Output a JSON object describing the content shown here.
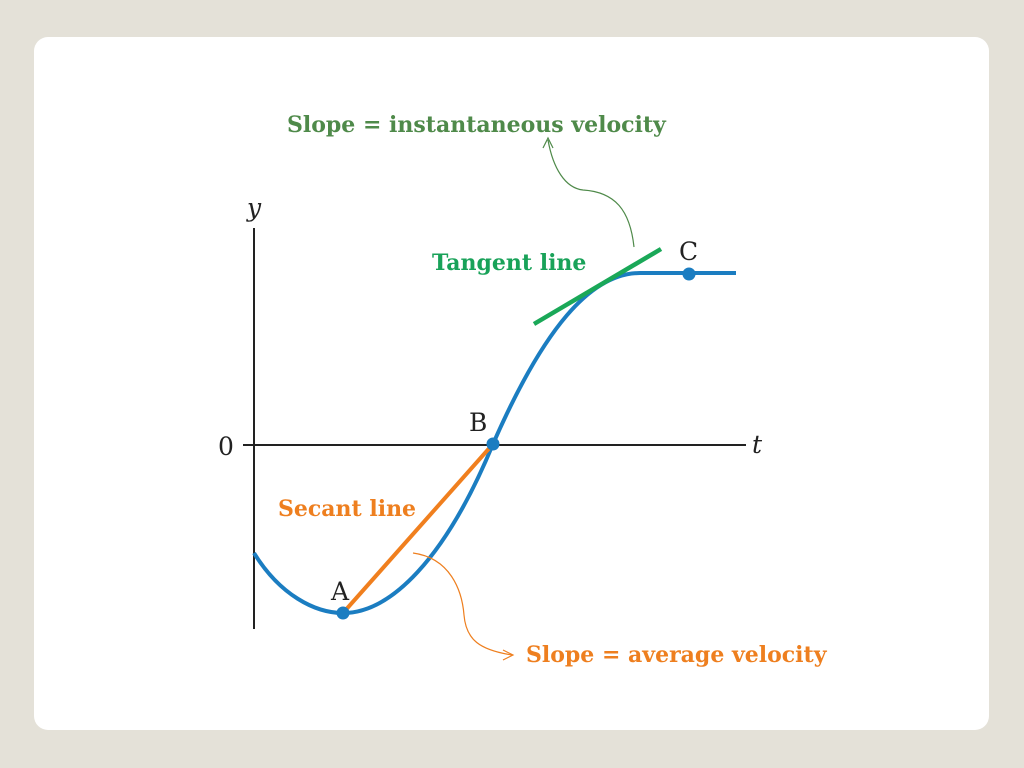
{
  "labels": {
    "instantaneous": "Slope = instantaneous velocity",
    "tangent": "Tangent line",
    "secant": "Secant line",
    "average": "Slope = average velocity"
  },
  "axes": {
    "y_label": "y",
    "x_label": "t",
    "origin_label": "0"
  },
  "points": {
    "a": "A",
    "b": "B",
    "c": "C"
  },
  "colors": {
    "background": "#e4e1d8",
    "slide": "#ffffff",
    "curve": "#1b7dc1",
    "secant": "#f07f1e",
    "tangent": "#1aa858",
    "instantaneous_label": "#4f8a4a",
    "tangent_label": "#19a259",
    "secant_label": "#ee7f1f",
    "axis": "#222222"
  }
}
